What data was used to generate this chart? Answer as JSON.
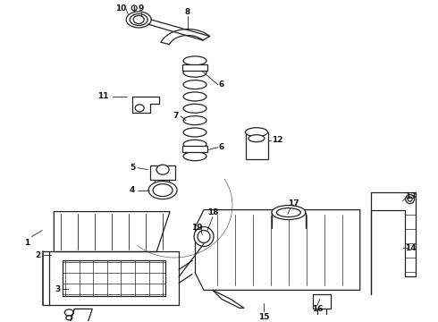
{
  "bg_color": "#ffffff",
  "line_color": "#222222",
  "label_color": "#111111",
  "figsize": [
    4.9,
    3.6
  ],
  "dpi": 100,
  "lw": 0.9,
  "label_fontsize": 6.5
}
